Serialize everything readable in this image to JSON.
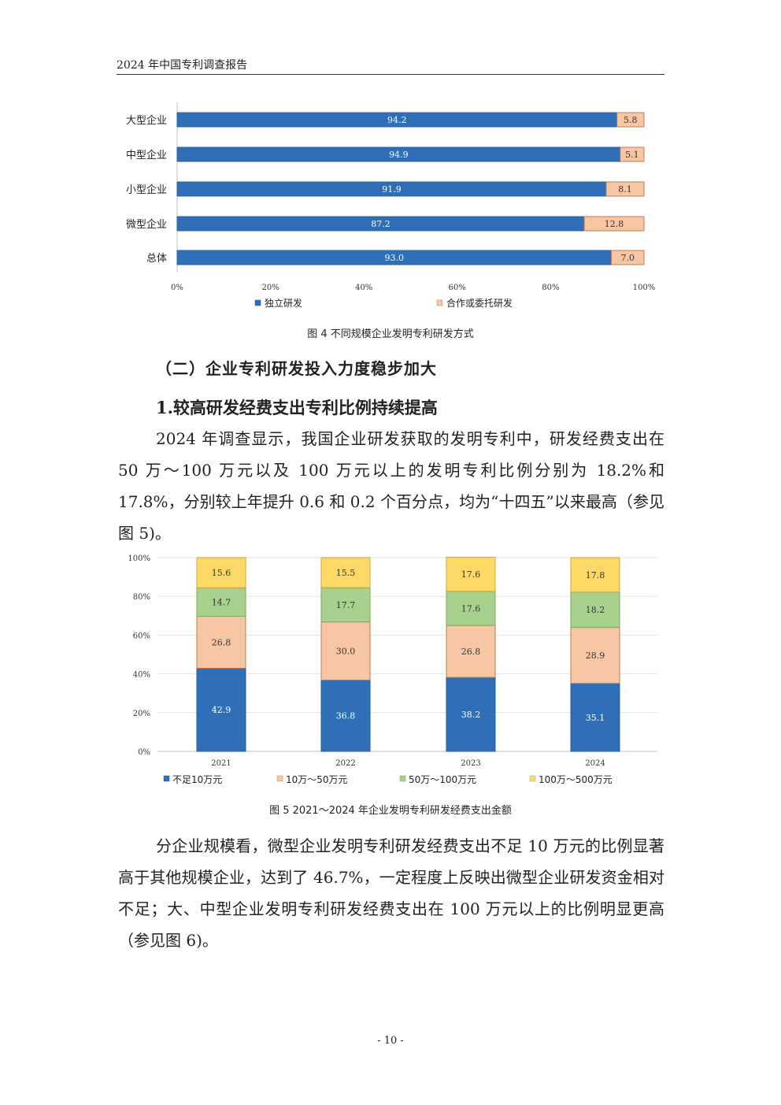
{
  "header": {
    "title": "2024 年中国专利调查报告"
  },
  "figure4": {
    "caption": "图 4   不同规模企业发明专利研发方式",
    "chart_data": {
      "type": "bar",
      "orientation": "horizontal",
      "stacked": true,
      "categories": [
        "大型企业",
        "中型企业",
        "小型企业",
        "微型企业",
        "总体"
      ],
      "series": [
        {
          "name": "独立研发",
          "values": [
            94.2,
            94.9,
            91.9,
            87.2,
            93.0
          ],
          "labels": [
            "94.2",
            "94.9",
            "91.9",
            "87.2",
            "93.0"
          ],
          "color": "#2e6fb7",
          "label_color": "#ffffff"
        },
        {
          "name": "合作或委托研发",
          "values": [
            5.8,
            5.1,
            8.1,
            12.8,
            7.0
          ],
          "labels": [
            "5.8",
            "5.1",
            "8.1",
            "12.8",
            "7.0"
          ],
          "color": "#f7c6a3",
          "label_color": "#333333"
        }
      ],
      "xlim": [
        0,
        100
      ],
      "ticks": [
        "0%",
        "20%",
        "40%",
        "60%",
        "80%",
        "100%"
      ],
      "legend": "bottom"
    }
  },
  "section_heading": "（二）企业专利研发投入力度稳步加大",
  "sub_heading": "1.较高研发经费支出专利比例持续提高",
  "para1": "2024 年调查显示，我国企业研发获取的发明专利中，研发经费支出在 50 万～100 万元以及 100 万元以上的发明专利比例分别为 18.2%和 17.8%，分别较上年提升 0.6 和 0.2 个百分点，均为“十四五”以来最高（参见图 5)。",
  "figure5": {
    "caption": "图 5   2021～2024 年企业发明专利研发经费支出金额",
    "chart_data": {
      "type": "bar",
      "stacked": true,
      "categories": [
        "2021",
        "2022",
        "2023",
        "2024"
      ],
      "series": [
        {
          "name": "不足10万元",
          "values": [
            42.9,
            36.8,
            38.2,
            35.1
          ],
          "labels": [
            "42.9",
            "36.8",
            "38.2",
            "35.1"
          ],
          "color": "#2e6fb7",
          "label_color": "#ffffff"
        },
        {
          "name": "10万～50万元",
          "values": [
            26.8,
            30.0,
            26.8,
            28.9
          ],
          "labels": [
            "26.8",
            "30.0",
            "26.8",
            "28.9"
          ],
          "color": "#f7c6a3",
          "label_color": "#333333"
        },
        {
          "name": "50万～100万元",
          "values": [
            14.7,
            17.7,
            17.6,
            18.2
          ],
          "labels": [
            "14.7",
            "17.7",
            "17.6",
            "18.2"
          ],
          "color": "#a9d18e",
          "label_color": "#333333"
        },
        {
          "name": "100万～500万元",
          "values": [
            15.6,
            15.5,
            17.6,
            17.8
          ],
          "labels": [
            "15.6",
            "15.5",
            "17.6",
            "17.8"
          ],
          "color": "#ffd966",
          "label_color": "#333333"
        }
      ],
      "ylim": [
        0,
        100
      ],
      "ticks": [
        "0%",
        "20%",
        "40%",
        "60%",
        "80%",
        "100%"
      ],
      "grid": true,
      "legend": "bottom"
    }
  },
  "para2": "分企业规模看，微型企业发明专利研发经费支出不足 10 万元的比例显著高于其他规模企业，达到了 46.7%，一定程度上反映出微型企业研发资金相对不足；大、中型企业发明专利研发经费支出在 100 万元以上的比例明显更高（参见图 6)。",
  "page_number": "- 10 -"
}
